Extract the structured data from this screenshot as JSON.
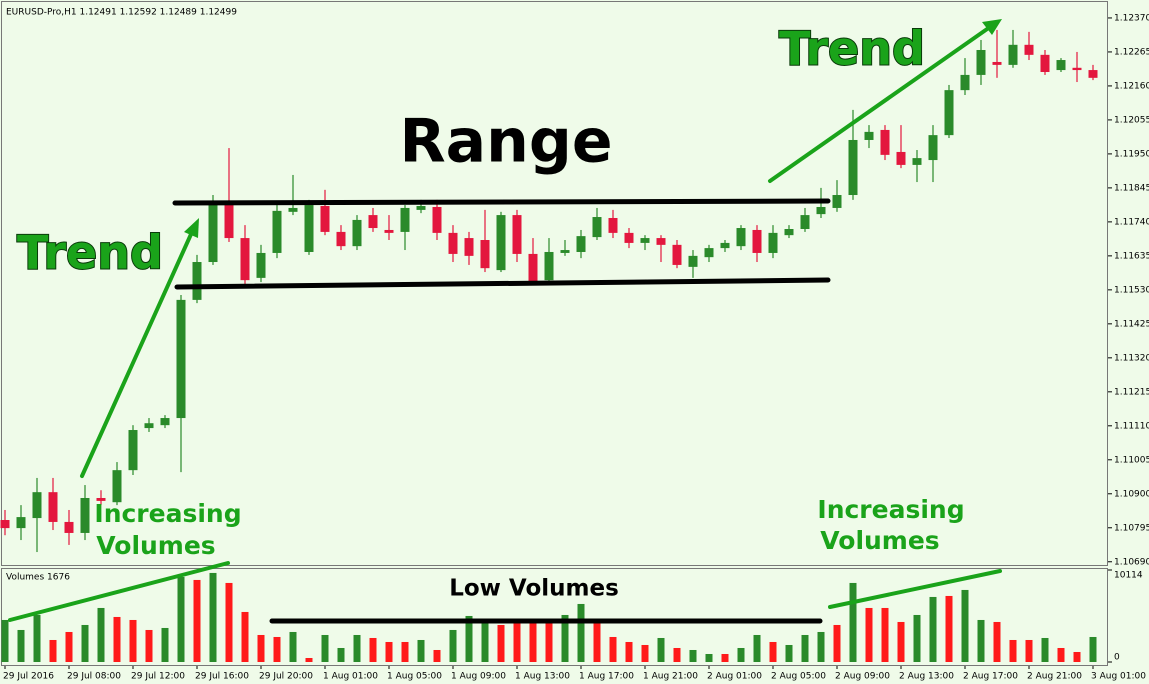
{
  "chart_data": [
    {
      "type": "candlestick",
      "title": "EURUSD-Pro,H1  1.12491 1.12592 1.12489 1.12499",
      "up_color": "#2a8a2a",
      "down_color": "#e3173e",
      "open": [
        1.10819,
        1.10794,
        1.10825,
        1.10905,
        1.10813,
        1.10779,
        1.10887,
        1.10874,
        1.10973,
        1.11103,
        1.11112,
        1.11134,
        1.11499,
        1.11616,
        1.11795,
        1.1169,
        1.11567,
        1.11644,
        1.11771,
        1.11647,
        1.11789,
        1.11709,
        1.11665,
        1.11761,
        1.11715,
        1.11709,
        1.11777,
        1.11786,
        1.11706,
        1.1169,
        1.11684,
        1.11591,
        1.11761,
        1.11641,
        1.1156,
        1.11644,
        1.11647,
        1.11693,
        1.11752,
        1.11706,
        1.11675,
        1.1169,
        1.11669,
        1.11601,
        1.11631,
        1.11659,
        1.11665,
        1.11715,
        1.11644,
        1.11699,
        1.11718,
        1.11764,
        1.11783,
        1.11823,
        1.11993,
        1.12024,
        1.11956,
        1.11916,
        1.11931,
        1.12008,
        1.12147,
        1.12194,
        1.12234,
        1.12225,
        1.12287,
        1.12256,
        1.12209,
        1.12216,
        1.12209
      ],
      "high": [
        1.1085,
        1.10865,
        1.10949,
        1.10949,
        1.1085,
        1.10927,
        1.10911,
        1.10998,
        1.11112,
        1.11134,
        1.11143,
        1.11514,
        1.11638,
        1.11823,
        1.11968,
        1.1173,
        1.11669,
        1.11792,
        1.11885,
        1.11808,
        1.11839,
        1.1173,
        1.11761,
        1.11783,
        1.11761,
        1.11792,
        1.11808,
        1.11808,
        1.1173,
        1.11709,
        1.11777,
        1.11771,
        1.11777,
        1.1169,
        1.1169,
        1.11684,
        1.11715,
        1.11783,
        1.11777,
        1.11721,
        1.11699,
        1.11699,
        1.11684,
        1.11653,
        1.11669,
        1.11684,
        1.1173,
        1.1173,
        1.1173,
        1.1173,
        1.11783,
        1.11845,
        1.11869,
        1.12086,
        1.12039,
        1.12039,
        1.12039,
        1.11962,
        1.12039,
        1.12163,
        1.12246,
        1.12302,
        1.12333,
        1.12333,
        1.12327,
        1.12271,
        1.12246,
        1.12265,
        1.12225
      ],
      "low": [
        1.10772,
        1.10757,
        1.1072,
        1.10788,
        1.10742,
        1.10757,
        1.10865,
        1.10865,
        1.10958,
        1.11091,
        1.11103,
        1.10967,
        1.11489,
        1.11607,
        1.11678,
        1.11545,
        1.11554,
        1.11628,
        1.11761,
        1.11638,
        1.11699,
        1.11653,
        1.11653,
        1.11709,
        1.11684,
        1.11653,
        1.11767,
        1.11684,
        1.11616,
        1.11607,
        1.11585,
        1.11585,
        1.11616,
        1.11545,
        1.11554,
        1.11635,
        1.11628,
        1.11684,
        1.1169,
        1.11659,
        1.11653,
        1.11616,
        1.11597,
        1.11567,
        1.11616,
        1.11647,
        1.11653,
        1.11616,
        1.11628,
        1.1169,
        1.11709,
        1.11752,
        1.11771,
        1.11808,
        1.11968,
        1.11931,
        1.11906,
        1.11863,
        1.11863,
        1.11999,
        1.12132,
        1.12163,
        1.12185,
        1.12216,
        1.1224,
        1.12194,
        1.12203,
        1.12172,
        1.12178
      ],
      "close": [
        1.10794,
        1.10828,
        1.10905,
        1.10813,
        1.10779,
        1.10887,
        1.10878,
        1.10973,
        1.11097,
        1.11118,
        1.11134,
        1.11499,
        1.11616,
        1.11795,
        1.1169,
        1.1156,
        1.11644,
        1.11774,
        1.11783,
        1.11792,
        1.11709,
        1.11665,
        1.11746,
        1.11721,
        1.11706,
        1.11783,
        1.11789,
        1.11706,
        1.11641,
        1.11635,
        1.11597,
        1.11761,
        1.11641,
        1.11554,
        1.11647,
        1.11653,
        1.11696,
        1.11755,
        1.11706,
        1.11675,
        1.1169,
        1.11669,
        1.11607,
        1.11635,
        1.11659,
        1.11675,
        1.11721,
        1.11644,
        1.11706,
        1.11718,
        1.11761,
        1.11786,
        1.11823,
        1.11993,
        1.12018,
        1.11947,
        1.11916,
        1.11937,
        1.12008,
        1.12147,
        1.12194,
        1.12271,
        1.12225,
        1.12287,
        1.12256,
        1.12203,
        1.1224,
        1.12209,
        1.12185
      ],
      "ylim": [
        1.1068,
        1.1241
      ],
      "yticks": [
        {
          "value": 1.1237,
          "label": "1.12370"
        },
        {
          "value": 1.12265,
          "label": "1.12265"
        },
        {
          "value": 1.1216,
          "label": "1.12160"
        },
        {
          "value": 1.12055,
          "label": "1.12055"
        },
        {
          "value": 1.1195,
          "label": "1.11950"
        },
        {
          "value": 1.11845,
          "label": "1.11845"
        },
        {
          "value": 1.1174,
          "label": "1.11740"
        },
        {
          "value": 1.11635,
          "label": "1.11635"
        },
        {
          "value": 1.1153,
          "label": "1.11530"
        },
        {
          "value": 1.11425,
          "label": "1.11425"
        },
        {
          "value": 1.1132,
          "label": "1.11320"
        },
        {
          "value": 1.11215,
          "label": "1.11215"
        },
        {
          "value": 1.1111,
          "label": "1.11110"
        },
        {
          "value": 1.11005,
          "label": "1.11005"
        },
        {
          "value": 1.109,
          "label": "1.10900"
        },
        {
          "value": 1.10795,
          "label": "1.10795"
        },
        {
          "value": 1.1069,
          "label": "1.10690"
        }
      ],
      "annotations": [
        "Trend",
        "Range",
        "Trend",
        "Increasing",
        "Volumes",
        "Increasing",
        "Volumes"
      ]
    },
    {
      "type": "bar",
      "title": "Volumes 1676",
      "categories": [
        "29 Jul 2016",
        null,
        null,
        null,
        "29 Jul 08:00",
        null,
        null,
        null,
        "29 Jul 12:00",
        null,
        null,
        null,
        "29 Jul 16:00",
        null,
        null,
        null,
        "29 Jul 20:00",
        null,
        null,
        null,
        "1 Aug 01:00",
        null,
        null,
        null,
        "1 Aug 05:00",
        null,
        null,
        null,
        "1 Aug 09:00",
        null,
        null,
        null,
        "1 Aug 13:00",
        null,
        null,
        null,
        "1 Aug 17:00",
        null,
        null,
        null,
        "1 Aug 21:00",
        null,
        null,
        null,
        "2 Aug 01:00",
        null,
        null,
        null,
        "2 Aug 05:00",
        null,
        null,
        null,
        "2 Aug 09:00",
        null,
        null,
        null,
        "2 Aug 13:00",
        null,
        null,
        null,
        "2 Aug 17:00",
        null,
        null,
        null,
        "2 Aug 21:00",
        null,
        null,
        null,
        "3 Aug 01:00"
      ],
      "values": [
        4620,
        3520,
        5170,
        2420,
        3300,
        4070,
        5940,
        4950,
        4620,
        3520,
        3740,
        9350,
        9020,
        9790,
        8690,
        5500,
        2970,
        2750,
        3300,
        440,
        2970,
        1540,
        2970,
        2640,
        2200,
        2200,
        2420,
        1320,
        3520,
        5060,
        4400,
        4070,
        4620,
        4400,
        4620,
        5170,
        6380,
        4400,
        2750,
        2200,
        1870,
        2640,
        1540,
        1320,
        880,
        880,
        1540,
        2970,
        2200,
        1870,
        2970,
        3300,
        4070,
        8690,
        5940,
        5940,
        4400,
        5170,
        7150,
        7260,
        7920,
        4620,
        4400,
        2420,
        2420,
        2640,
        1540,
        1100,
        2750
      ],
      "colors": [
        "#2a8a2a",
        "#2a8a2a",
        "#2a8a2a",
        "#ff1a1a",
        "#ff1a1a",
        "#2a8a2a",
        "#2a8a2a",
        "#ff1a1a",
        "#ff1a1a",
        "#ff1a1a",
        "#2a8a2a",
        "#2a8a2a",
        "#ff1a1a",
        "#2a8a2a",
        "#ff1a1a",
        "#ff1a1a",
        "#ff1a1a",
        "#ff1a1a",
        "#2a8a2a",
        "#ff1a1a",
        "#2a8a2a",
        "#2a8a2a",
        "#2a8a2a",
        "#ff1a1a",
        "#ff1a1a",
        "#ff1a1a",
        "#2a8a2a",
        "#ff1a1a",
        "#2a8a2a",
        "#2a8a2a",
        "#2a8a2a",
        "#ff1a1a",
        "#ff1a1a",
        "#ff1a1a",
        "#ff1a1a",
        "#2a8a2a",
        "#2a8a2a",
        "#ff1a1a",
        "#ff1a1a",
        "#ff1a1a",
        "#ff1a1a",
        "#2a8a2a",
        "#ff1a1a",
        "#2a8a2a",
        "#2a8a2a",
        "#ff1a1a",
        "#2a8a2a",
        "#2a8a2a",
        "#ff1a1a",
        "#2a8a2a",
        "#2a8a2a",
        "#2a8a2a",
        "#ff1a1a",
        "#2a8a2a",
        "#ff1a1a",
        "#ff1a1a",
        "#ff1a1a",
        "#2a8a2a",
        "#2a8a2a",
        "#ff1a1a",
        "#2a8a2a",
        "#2a8a2a",
        "#ff1a1a",
        "#ff1a1a",
        "#ff1a1a",
        "#2a8a2a",
        "#ff1a1a",
        "#ff1a1a",
        "#2a8a2a"
      ],
      "ylim": [
        0,
        10114
      ],
      "yticks": [
        0,
        10114
      ],
      "annotations": [
        "Low Volumes"
      ]
    }
  ]
}
